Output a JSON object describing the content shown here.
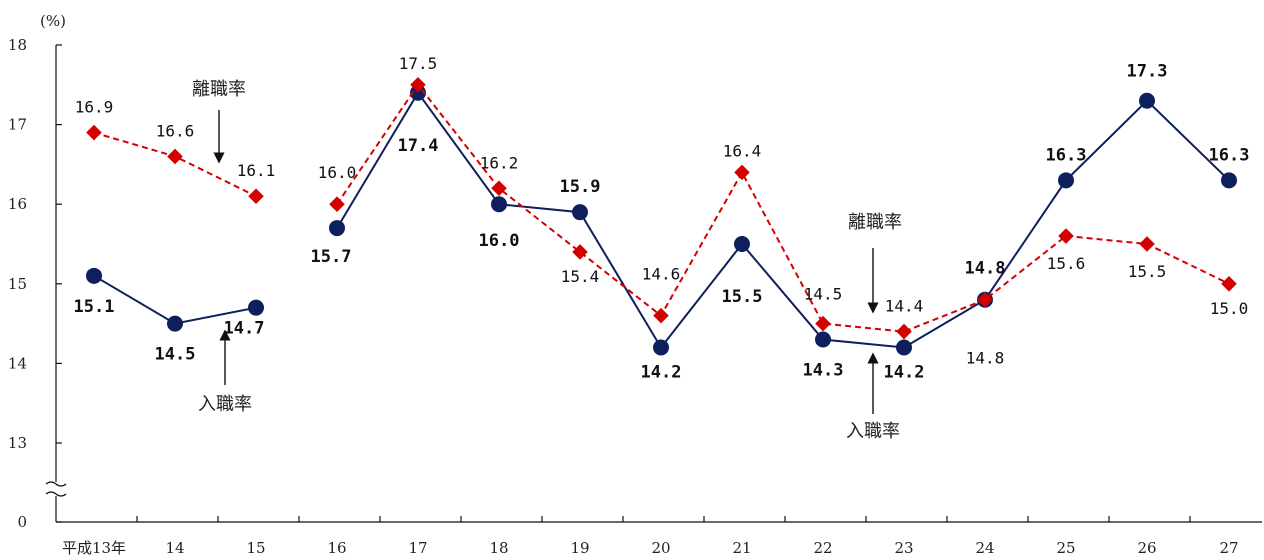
{
  "chart_data": {
    "type": "line",
    "unit_label": "(%)",
    "x_labels": [
      "平成13年",
      "14",
      "15",
      "16",
      "17",
      "18",
      "19",
      "20",
      "21",
      "22",
      "23",
      "24",
      "25",
      "26",
      "27"
    ],
    "y_ticks": [
      "0",
      "13",
      "14",
      "15",
      "16",
      "17",
      "18"
    ],
    "ylim": [
      13,
      18
    ],
    "axis_break": true,
    "grid": false,
    "series": [
      {
        "name": "入職率",
        "color": "#0d1f5c",
        "line_style": "solid",
        "marker": "circle",
        "values": [
          15.1,
          14.5,
          14.7,
          15.7,
          17.4,
          16.0,
          15.9,
          14.2,
          15.5,
          14.3,
          14.2,
          14.8,
          16.3,
          17.3,
          16.3
        ],
        "labels": [
          "15.1",
          "14.5",
          "14.7",
          "15.7",
          "17.4",
          "16.0",
          "15.9",
          "14.2",
          "15.5",
          "14.3",
          "14.2",
          "14.8",
          "16.3",
          "17.3",
          "16.3"
        ]
      },
      {
        "name": "離職率",
        "color": "#d40000",
        "line_style": "dashed",
        "marker": "diamond",
        "values": [
          16.9,
          16.6,
          16.1,
          16.0,
          17.5,
          16.2,
          15.4,
          14.6,
          16.4,
          14.5,
          14.4,
          14.8,
          15.6,
          15.5,
          15.0
        ],
        "labels": [
          "16.9",
          "16.6",
          "16.1",
          "16.0",
          "17.5",
          "16.2",
          "15.4",
          "14.6",
          "16.4",
          "14.5",
          "14.4",
          "14.8",
          "15.6",
          "15.5",
          "15.0"
        ]
      }
    ],
    "annotations": [
      {
        "text": "離職率",
        "direction": "down"
      },
      {
        "text": "入職率",
        "direction": "up"
      },
      {
        "text": "離職率",
        "direction": "down"
      },
      {
        "text": "入職率",
        "direction": "up"
      }
    ]
  }
}
